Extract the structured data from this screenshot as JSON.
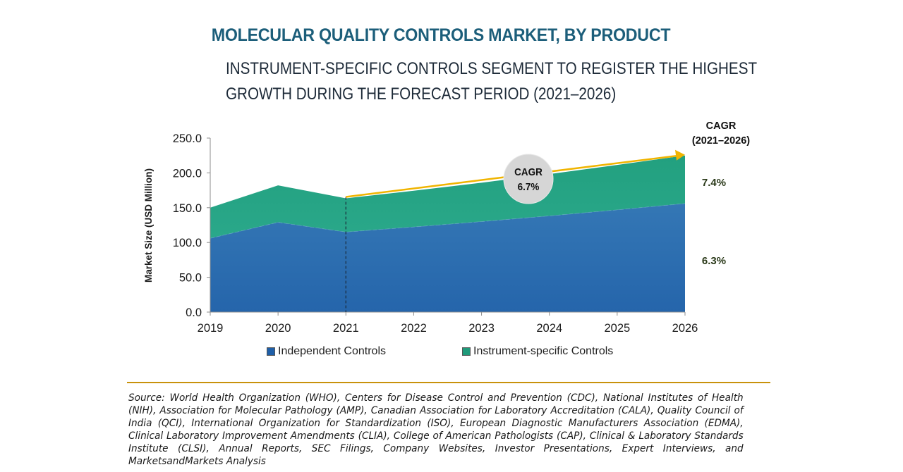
{
  "header": {
    "title": "MOLECULAR QUALITY CONTROLS MARKET, BY PRODUCT",
    "subtitle_line1": "INSTRUMENT-SPECIFIC CONTROLS SEGMENT TO REGISTER THE HIGHEST",
    "subtitle_line2": "GROWTH DURING THE FORECAST PERIOD (2021–2026)"
  },
  "chart_data": {
    "type": "area",
    "stacked": true,
    "title": "MOLECULAR QUALITY CONTROLS MARKET, BY PRODUCT",
    "xlabel": "",
    "ylabel": "Market Size (USD Million)",
    "ylim": [
      0,
      250
    ],
    "yticks": [
      "0.0",
      "50.0",
      "100.0",
      "150.0",
      "200.0",
      "250.0"
    ],
    "ytick_values": [
      0,
      50,
      100,
      150,
      200,
      250
    ],
    "categories": [
      "2019",
      "2020",
      "2021",
      "2022",
      "2023",
      "2024",
      "2025",
      "2026"
    ],
    "series": [
      {
        "name": "Independent Controls",
        "color": "#2e6db0",
        "values": [
          106,
          129,
          115,
          122.3,
          130.0,
          138.2,
          146.9,
          156.0
        ]
      },
      {
        "name": "Instrument-specific Controls",
        "color": "#27a082",
        "values": [
          44,
          53,
          48.5,
          52.1,
          55.9,
          60.1,
          64.5,
          69.0
        ]
      }
    ],
    "forecast_start": "2021",
    "annotations": {
      "overall_cagr_label": "CAGR",
      "overall_cagr_value": "6.7%",
      "cagr_header_line1": "CAGR",
      "cagr_header_line2": "(2021–2026)",
      "segment_cagrs": [
        {
          "series": "Instrument-specific Controls",
          "value": "7.4%"
        },
        {
          "series": "Independent Controls",
          "value": "6.3%"
        }
      ]
    },
    "legend_position": "bottom",
    "grid": false,
    "colors": {
      "arrow": "#f0b400",
      "bubble": "#d6d6d6",
      "cagr_text": "#2b3a1a"
    }
  },
  "legend": {
    "items": [
      {
        "label": "Independent Controls",
        "color": "#1f5fa8"
      },
      {
        "label": "Instrument-specific Controls",
        "color": "#1f9a7a"
      }
    ]
  },
  "footer": {
    "source": "Source: World Health Organization (WHO), Centers for Disease Control and Prevention (CDC), National Institutes of Health (NIH), Association for Molecular Pathology (AMP), Canadian Association for Laboratory Accreditation (CALA), Quality Council of India (QCI), International Organization for Standardization (ISO), European Diagnostic Manufacturers Association (EDMA), Clinical Laboratory Improvement Amendments (CLIA), College of American Pathologists (CAP), Clinical & Laboratory Standards Institute (CLSI), Annual Reports, SEC Filings, Company Websites, Investor Presentations, Expert Interviews, and MarketsandMarkets Analysis"
  }
}
